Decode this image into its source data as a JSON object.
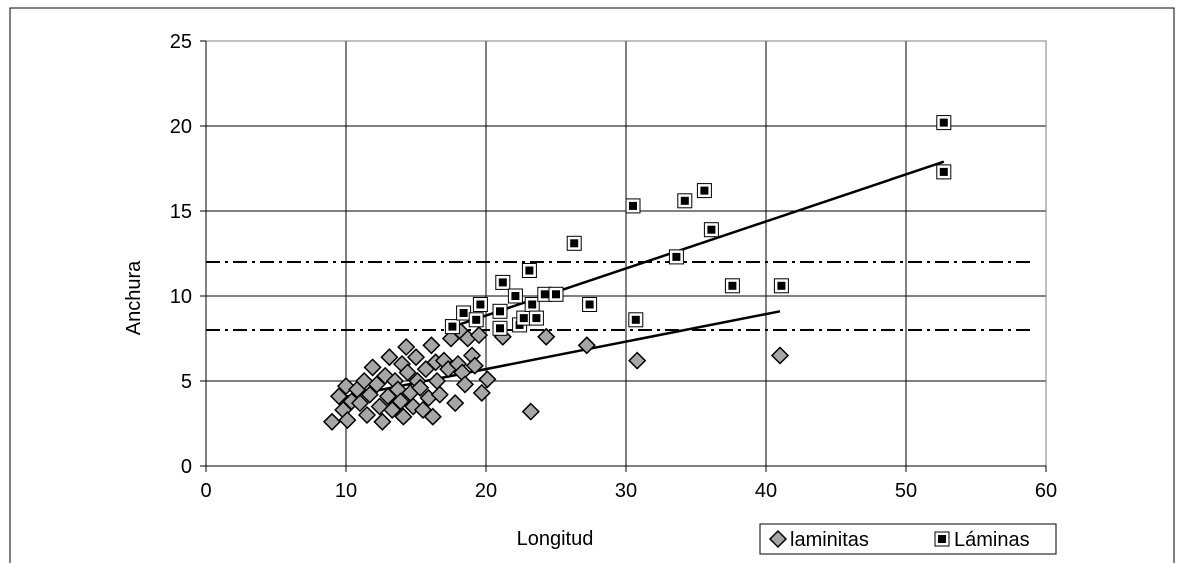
{
  "chart_data": {
    "type": "scatter",
    "xlabel": "Longitud",
    "ylabel": "Anchura",
    "xlim": [
      0,
      60
    ],
    "ylim": [
      0,
      25
    ],
    "xticks": [
      0,
      10,
      20,
      30,
      40,
      50,
      60
    ],
    "yticks": [
      0,
      5,
      10,
      15,
      20,
      25
    ],
    "grid": true,
    "legend_position": "bottom-right",
    "reference_lines_y": [
      8,
      12
    ],
    "colors": {
      "laminitas": "#a6a6a6",
      "laminas": "#000000",
      "lines": "#000000"
    },
    "series": [
      {
        "name": "laminitas",
        "marker": "diamond",
        "points": [
          [
            9.0,
            2.6
          ],
          [
            9.5,
            4.1
          ],
          [
            9.8,
            3.3
          ],
          [
            10.0,
            4.7
          ],
          [
            10.1,
            2.7
          ],
          [
            10.4,
            3.8
          ],
          [
            10.8,
            4.5
          ],
          [
            11.0,
            3.7
          ],
          [
            11.3,
            5.0
          ],
          [
            11.5,
            3.0
          ],
          [
            11.7,
            4.2
          ],
          [
            11.9,
            5.8
          ],
          [
            12.2,
            4.8
          ],
          [
            12.4,
            3.5
          ],
          [
            12.6,
            2.6
          ],
          [
            12.8,
            5.3
          ],
          [
            13.0,
            4.1
          ],
          [
            13.1,
            6.4
          ],
          [
            13.3,
            3.3
          ],
          [
            13.5,
            5.0
          ],
          [
            13.7,
            4.5
          ],
          [
            13.9,
            3.8
          ],
          [
            14.0,
            6.0
          ],
          [
            14.1,
            2.9
          ],
          [
            14.3,
            7.0
          ],
          [
            14.4,
            5.5
          ],
          [
            14.6,
            4.3
          ],
          [
            14.8,
            3.5
          ],
          [
            15.0,
            6.4
          ],
          [
            15.1,
            5.0
          ],
          [
            15.3,
            4.6
          ],
          [
            15.5,
            3.3
          ],
          [
            15.7,
            5.7
          ],
          [
            15.9,
            4.0
          ],
          [
            16.1,
            7.1
          ],
          [
            16.2,
            2.9
          ],
          [
            16.4,
            6.1
          ],
          [
            16.5,
            5.0
          ],
          [
            16.7,
            4.2
          ],
          [
            17.0,
            6.2
          ],
          [
            17.3,
            5.7
          ],
          [
            17.5,
            7.5
          ],
          [
            17.8,
            3.7
          ],
          [
            18.0,
            6.0
          ],
          [
            18.2,
            7.9
          ],
          [
            18.3,
            5.5
          ],
          [
            18.5,
            4.8
          ],
          [
            18.7,
            7.5
          ],
          [
            19.0,
            6.5
          ],
          [
            19.2,
            5.9
          ],
          [
            19.5,
            7.7
          ],
          [
            19.7,
            4.3
          ],
          [
            20.1,
            5.1
          ],
          [
            21.2,
            7.6
          ],
          [
            23.2,
            3.2
          ],
          [
            24.3,
            7.6
          ],
          [
            27.2,
            7.1
          ],
          [
            30.8,
            6.2
          ],
          [
            41.0,
            6.5
          ]
        ],
        "trend": {
          "x0": 9.5,
          "y0": 4.0,
          "x1": 41.0,
          "y1": 9.1
        }
      },
      {
        "name": "Láminas",
        "marker": "square",
        "points": [
          [
            17.6,
            8.2
          ],
          [
            18.4,
            9.0
          ],
          [
            19.3,
            8.6
          ],
          [
            19.6,
            9.5
          ],
          [
            21.0,
            9.1
          ],
          [
            21.0,
            8.1
          ],
          [
            21.2,
            10.8
          ],
          [
            22.1,
            10.0
          ],
          [
            22.4,
            8.3
          ],
          [
            22.7,
            8.7
          ],
          [
            23.1,
            11.5
          ],
          [
            23.3,
            9.5
          ],
          [
            23.6,
            8.7
          ],
          [
            24.2,
            10.1
          ],
          [
            25.0,
            10.1
          ],
          [
            26.3,
            13.1
          ],
          [
            27.4,
            9.5
          ],
          [
            30.5,
            15.3
          ],
          [
            30.7,
            8.6
          ],
          [
            33.6,
            12.3
          ],
          [
            34.2,
            15.6
          ],
          [
            35.6,
            16.2
          ],
          [
            36.1,
            13.9
          ],
          [
            37.6,
            10.6
          ],
          [
            41.1,
            10.6
          ],
          [
            52.7,
            20.2
          ],
          [
            52.7,
            17.3
          ]
        ],
        "trend": {
          "x0": 18.0,
          "y0": 8.3,
          "x1": 52.7,
          "y1": 17.9
        }
      }
    ]
  }
}
